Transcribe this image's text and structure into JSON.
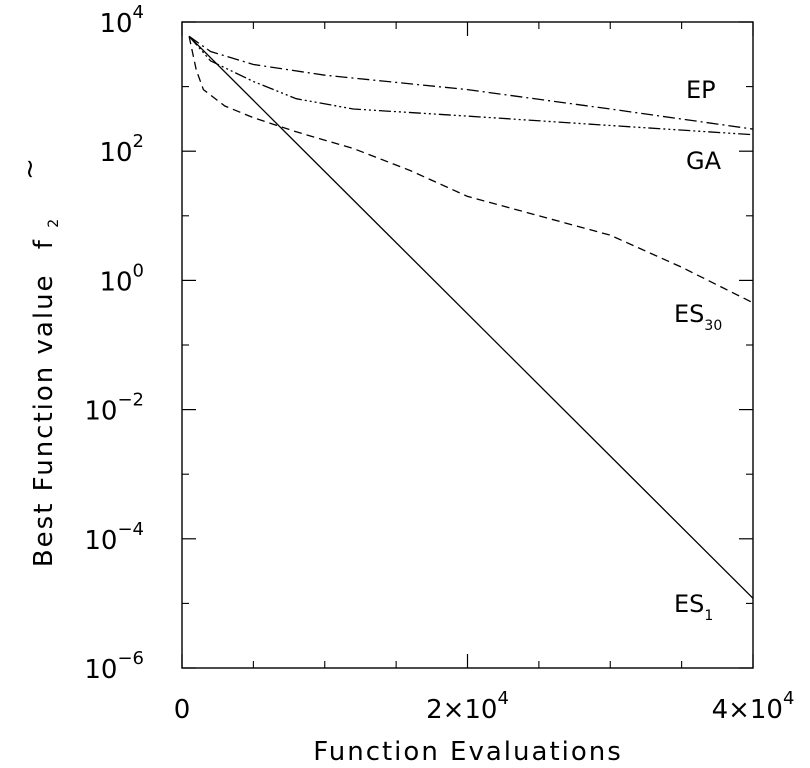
{
  "chart_data": {
    "type": "line",
    "xlabel": "Function Evaluations",
    "ylabel": "Best Function value",
    "ylabel_symbol": "f",
    "ylabel_symbol_sub": "2",
    "ylabel_symbol_mark": "~",
    "y_scale": "log",
    "xlim": [
      0,
      40000
    ],
    "ylim": [
      1e-06,
      10000
    ],
    "x_ticks": [
      {
        "value": 0,
        "mantissa": "0",
        "exp": ""
      },
      {
        "value": 20000,
        "mantissa": "2×10",
        "exp": "4"
      },
      {
        "value": 40000,
        "mantissa": "4×10",
        "exp": "4"
      }
    ],
    "y_ticks": [
      {
        "value": 10000,
        "mantissa": "10",
        "exp": "4"
      },
      {
        "value": 100,
        "mantissa": "10",
        "exp": "2"
      },
      {
        "value": 1,
        "mantissa": "10",
        "exp": "0"
      },
      {
        "value": 0.01,
        "mantissa": "10",
        "exp": "−2"
      },
      {
        "value": 0.0001,
        "mantissa": "10",
        "exp": "−4"
      },
      {
        "value": 1e-06,
        "mantissa": "10",
        "exp": "−6"
      }
    ],
    "x_minor_ticks": [
      5000,
      10000,
      15000,
      25000,
      30000,
      35000
    ],
    "series": [
      {
        "name": "EP",
        "sub": "",
        "dash": "12,4,2,4",
        "x": [
          500,
          2000,
          5000,
          10000,
          20000,
          30000,
          40000
        ],
        "y": [
          6000,
          3500,
          2200,
          1500,
          900,
          450,
          220
        ]
      },
      {
        "name": "GA",
        "sub": "",
        "dash": "12,3,2,3,2,3,2,3",
        "x": [
          500,
          2000,
          5000,
          8000,
          12000,
          20000,
          30000,
          40000
        ],
        "y": [
          6000,
          2500,
          1200,
          650,
          450,
          350,
          250,
          180
        ]
      },
      {
        "name": "ES",
        "sub": "30",
        "dash": "8,5",
        "x": [
          500,
          1000,
          1500,
          3000,
          5000,
          8000,
          12000,
          16000,
          20000,
          25000,
          30000,
          35000,
          40000
        ],
        "y": [
          6000,
          1800,
          900,
          500,
          330,
          200,
          110,
          50,
          20,
          10,
          5,
          1.6,
          0.45
        ]
      },
      {
        "name": "ES",
        "sub": "1",
        "dash": "",
        "x": [
          500,
          40000
        ],
        "y": [
          6000,
          1.2e-05
        ]
      }
    ]
  }
}
